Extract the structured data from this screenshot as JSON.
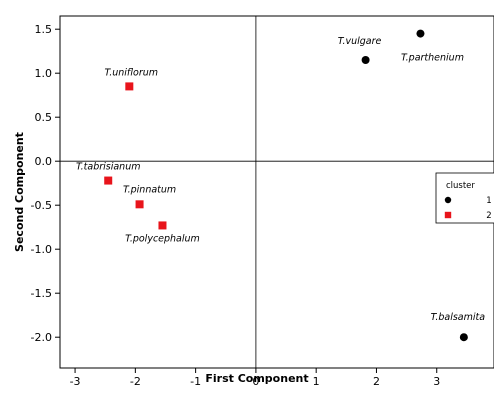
{
  "chart_data": {
    "type": "scatter",
    "xlabel": "First Component",
    "ylabel": "Second Component",
    "xlim": [
      -3.25,
      3.95
    ],
    "ylim": [
      -2.35,
      1.65
    ],
    "xticks": [
      -3,
      -2,
      -1,
      0,
      1,
      2,
      3
    ],
    "xtick_labels": [
      "-3",
      "-2",
      "-1",
      "0",
      "1",
      "2",
      "3"
    ],
    "yticks": [
      1.5,
      1.0,
      0.5,
      0.0,
      -0.5,
      -1.0,
      -1.5,
      -2.0
    ],
    "ytick_labels": [
      "1.5",
      "1.0",
      "0.5",
      "0.0",
      "-0.5",
      "-1.0",
      "-1.5",
      "-2.0"
    ],
    "reference_lines": {
      "x": 0,
      "y": 0
    },
    "grid": false,
    "legend": {
      "title": "cluster",
      "position": "right",
      "entries": [
        {
          "label": "1",
          "color": "#000000",
          "marker": "circle"
        },
        {
          "label": "2",
          "color": "#e8141b",
          "marker": "square"
        }
      ]
    },
    "series": [
      {
        "name": "1",
        "marker": "circle",
        "color": "#000000",
        "points": [
          {
            "label": "T.vulgare",
            "x": 1.82,
            "y": 1.15
          },
          {
            "label": "T.parthenium",
            "x": 2.73,
            "y": 1.45
          },
          {
            "label": "T.balsamita",
            "x": 3.45,
            "y": -2.0
          }
        ]
      },
      {
        "name": "2",
        "marker": "square",
        "color": "#e8141b",
        "points": [
          {
            "label": "T.uniflorum",
            "x": -2.1,
            "y": 0.85
          },
          {
            "label": "T.tabrisianum",
            "x": -2.45,
            "y": -0.22
          },
          {
            "label": "T.pinnatum",
            "x": -1.93,
            "y": -0.49
          },
          {
            "label": "T.polycephalum",
            "x": -1.55,
            "y": -0.73
          }
        ]
      }
    ]
  }
}
